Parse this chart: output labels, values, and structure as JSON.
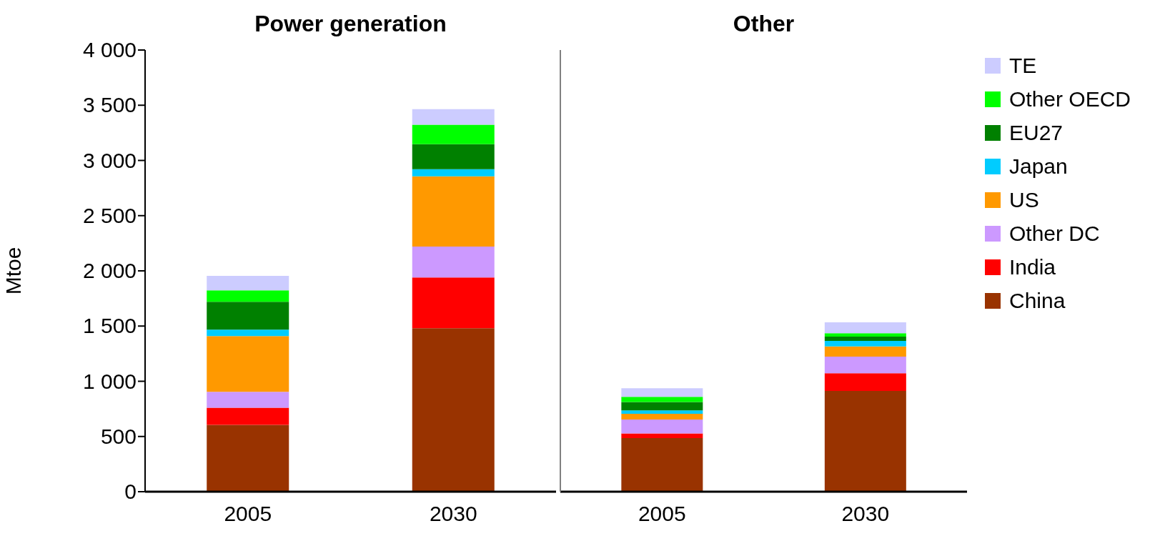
{
  "chart_data": [
    {
      "type": "bar",
      "title": "Power generation",
      "ylabel": "Mtoe",
      "categories": [
        "2005",
        "2030"
      ],
      "stacked": true,
      "ylim": [
        0,
        4000
      ],
      "yticks": [
        0,
        {
          "value": 500,
          "label": "500"
        },
        {
          "value": 1000,
          "label": "1 000"
        },
        {
          "value": 1500,
          "label": "1 500"
        },
        {
          "value": 2000,
          "label": "2 000"
        },
        {
          "value": 2500,
          "label": "2 500"
        },
        {
          "value": 3000,
          "label": "3 000"
        },
        {
          "value": 3500,
          "label": "3 500"
        },
        {
          "value": 4000,
          "label": "4 000"
        }
      ],
      "legend": false,
      "series": [
        {
          "color": "#993300",
          "values": [
            605,
            1481
          ]
        },
        {
          "color": "#ff0000",
          "values": [
            155,
            459
          ]
        },
        {
          "color": "#cc99ff",
          "values": [
            144,
            280
          ]
        },
        {
          "color": "#ff9900",
          "values": [
            505,
            636
          ]
        },
        {
          "color": "#00ccff",
          "values": [
            58,
            65
          ]
        },
        {
          "color": "#008000",
          "values": [
            253,
            227
          ]
        },
        {
          "color": "#00ff00",
          "values": [
            104,
            176
          ]
        },
        {
          "color": "#ccccff",
          "values": [
            130,
            141
          ]
        }
      ]
    },
    {
      "type": "bar",
      "title": "Other",
      "categories": [
        "2005",
        "2030"
      ],
      "stacked": true,
      "ylim": [
        0,
        4000
      ],
      "tick_labels": "x",
      "legend": "right",
      "series": [
        {
          "name": "China",
          "color": "#993300",
          "values": [
            485,
            913
          ]
        },
        {
          "name": "India",
          "color": "#ff0000",
          "values": [
            43,
            160
          ]
        },
        {
          "name": "Other DC",
          "color": "#cc99ff",
          "values": [
            125,
            151
          ]
        },
        {
          "name": "US",
          "color": "#ff9900",
          "values": [
            52,
            91
          ]
        },
        {
          "name": "Japan",
          "color": "#00ccff",
          "values": [
            31,
            50
          ]
        },
        {
          "name": "EU27",
          "color": "#008000",
          "values": [
            77,
            39
          ]
        },
        {
          "name": "Other OECD",
          "color": "#00ff00",
          "values": [
            46,
            32
          ]
        },
        {
          "name": "TE",
          "color": "#ccccff",
          "values": [
            78,
            98
          ]
        }
      ]
    }
  ]
}
